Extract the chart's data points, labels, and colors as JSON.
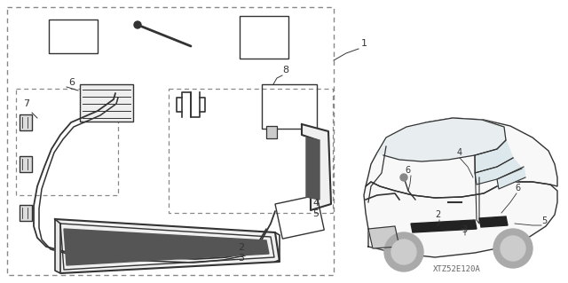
{
  "background_color": "#ffffff",
  "line_color": "#333333",
  "dash_color": "#666666",
  "watermark": "XTZ52E120A",
  "fig_width": 6.4,
  "fig_height": 3.19,
  "dpi": 100
}
